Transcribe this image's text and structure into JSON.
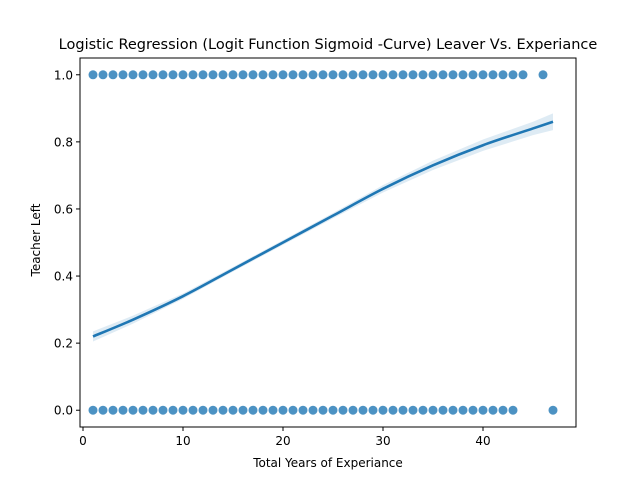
{
  "chart_data": {
    "type": "scatter",
    "title": "Logistic Regression (Logit Function Sigmoid -Curve) Leaver Vs. Experiance",
    "xlabel": "Total Years of Experiance",
    "ylabel": "Teacher Left",
    "xlim": [
      -0.3,
      49.3
    ],
    "ylim": [
      -0.05,
      1.05
    ],
    "xticks": [
      0,
      10,
      20,
      30,
      40
    ],
    "yticks": [
      0.0,
      0.2,
      0.4,
      0.6,
      0.8,
      1.0
    ],
    "xtick_labels": [
      "0",
      "10",
      "20",
      "30",
      "40"
    ],
    "ytick_labels": [
      "0.0",
      "0.2",
      "0.4",
      "0.6",
      "0.8",
      "1.0"
    ],
    "grid": false,
    "series": [
      {
        "kind": "scatter",
        "color": "#1f77b4",
        "points_y1": [
          1,
          2,
          3,
          4,
          5,
          6,
          7,
          8,
          9,
          10,
          11,
          12,
          13,
          14,
          15,
          16,
          17,
          18,
          19,
          20,
          21,
          22,
          23,
          24,
          25,
          26,
          27,
          28,
          29,
          30,
          31,
          32,
          33,
          34,
          35,
          36,
          37,
          38,
          39,
          40,
          41,
          42,
          43,
          44,
          46
        ],
        "points_y0": [
          1,
          2,
          3,
          4,
          5,
          6,
          7,
          8,
          9,
          10,
          11,
          12,
          13,
          14,
          15,
          16,
          17,
          18,
          19,
          20,
          21,
          22,
          23,
          24,
          25,
          26,
          27,
          28,
          29,
          30,
          31,
          32,
          33,
          34,
          35,
          36,
          37,
          38,
          39,
          40,
          41,
          42,
          43,
          47
        ]
      },
      {
        "kind": "logistic-fit",
        "color": "#1f77b4",
        "x": [
          1,
          5,
          10,
          15,
          20,
          25,
          30,
          35,
          40,
          45,
          47
        ],
        "y": [
          0.22,
          0.27,
          0.34,
          0.42,
          0.5,
          0.58,
          0.66,
          0.73,
          0.79,
          0.84,
          0.86
        ],
        "ci_lower": [
          0.205,
          0.258,
          0.332,
          0.413,
          0.493,
          0.572,
          0.649,
          0.716,
          0.773,
          0.82,
          0.835
        ],
        "ci_upper": [
          0.235,
          0.282,
          0.348,
          0.427,
          0.507,
          0.588,
          0.671,
          0.744,
          0.807,
          0.86,
          0.885
        ]
      }
    ]
  }
}
